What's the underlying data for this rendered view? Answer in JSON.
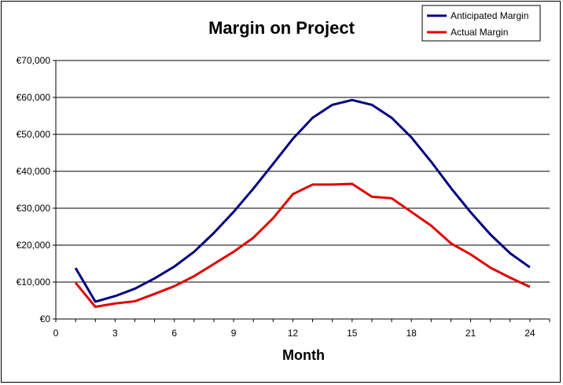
{
  "chart_data": {
    "type": "line",
    "title": "Margin on Project",
    "xlabel": "Month",
    "ylabel": "",
    "xlim": [
      0,
      25
    ],
    "ylim": [
      0,
      70000
    ],
    "x_ticks": [
      0,
      3,
      6,
      9,
      12,
      15,
      18,
      21,
      24
    ],
    "y_ticks": [
      0,
      10000,
      20000,
      30000,
      40000,
      50000,
      60000,
      70000
    ],
    "y_tick_labels": [
      "€0",
      "€10,000",
      "€20,000",
      "€30,000",
      "€40,000",
      "€50,000",
      "€60,000",
      "€70,000"
    ],
    "grid": "horizontal",
    "legend_position": "top-right",
    "x": [
      1,
      2,
      3,
      4,
      5,
      6,
      7,
      8,
      9,
      10,
      11,
      12,
      13,
      14,
      15,
      16,
      17,
      18,
      19,
      20,
      21,
      22,
      23,
      24
    ],
    "series": [
      {
        "name": "Anticipated Margin",
        "color": "#000080",
        "values": [
          13800,
          4700,
          6200,
          8200,
          11000,
          14200,
          18200,
          23300,
          29000,
          35300,
          42000,
          48800,
          54500,
          58000,
          59300,
          58000,
          54500,
          49200,
          42600,
          35500,
          28900,
          22900,
          17800,
          14000
        ]
      },
      {
        "name": "Actual Margin",
        "color": "#e00000",
        "values": [
          9800,
          3300,
          4200,
          4800,
          6800,
          8900,
          11600,
          14900,
          18200,
          22000,
          27300,
          33800,
          36400,
          36400,
          36600,
          33100,
          32700,
          29000,
          25300,
          20500,
          17500,
          13900,
          11200,
          8700
        ]
      }
    ]
  }
}
